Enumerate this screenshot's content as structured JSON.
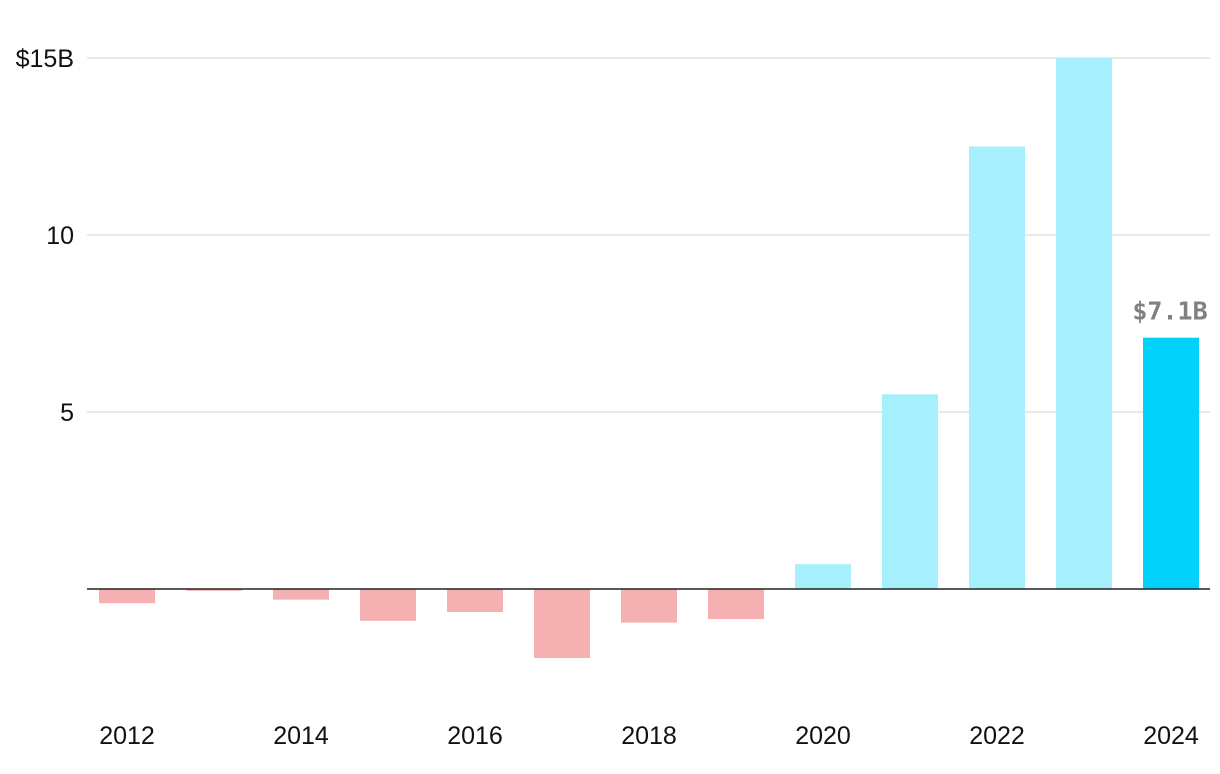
{
  "chart_data": {
    "type": "bar",
    "categories": [
      "2012",
      "2013",
      "2014",
      "2015",
      "2016",
      "2017",
      "2018",
      "2019",
      "2020",
      "2021",
      "2022",
      "2023",
      "2024"
    ],
    "values": [
      -0.4,
      -0.05,
      -0.3,
      -0.9,
      -0.65,
      -1.95,
      -0.95,
      -0.85,
      0.7,
      5.5,
      12.5,
      15.0,
      7.1
    ],
    "x_tick_labels": [
      "2012",
      "",
      "2014",
      "",
      "2016",
      "",
      "2018",
      "",
      "2020",
      "",
      "2022",
      "",
      "2024"
    ],
    "y_ticks": [
      {
        "value": 15,
        "label": "$15B"
      },
      {
        "value": 10,
        "label": "10"
      },
      {
        "value": 5,
        "label": "5"
      }
    ],
    "ylim": [
      -3.2,
      16
    ],
    "grid": true,
    "highlight": {
      "category": "2024",
      "label": "$7.1B"
    },
    "colors": {
      "positive": "#a6effc",
      "negative": "#f5b0b2",
      "highlight": "#00d2fc",
      "label": "#808080",
      "grid": "#e2e2e2",
      "baseline": "#222222"
    },
    "title": "",
    "xlabel": "",
    "ylabel": ""
  }
}
